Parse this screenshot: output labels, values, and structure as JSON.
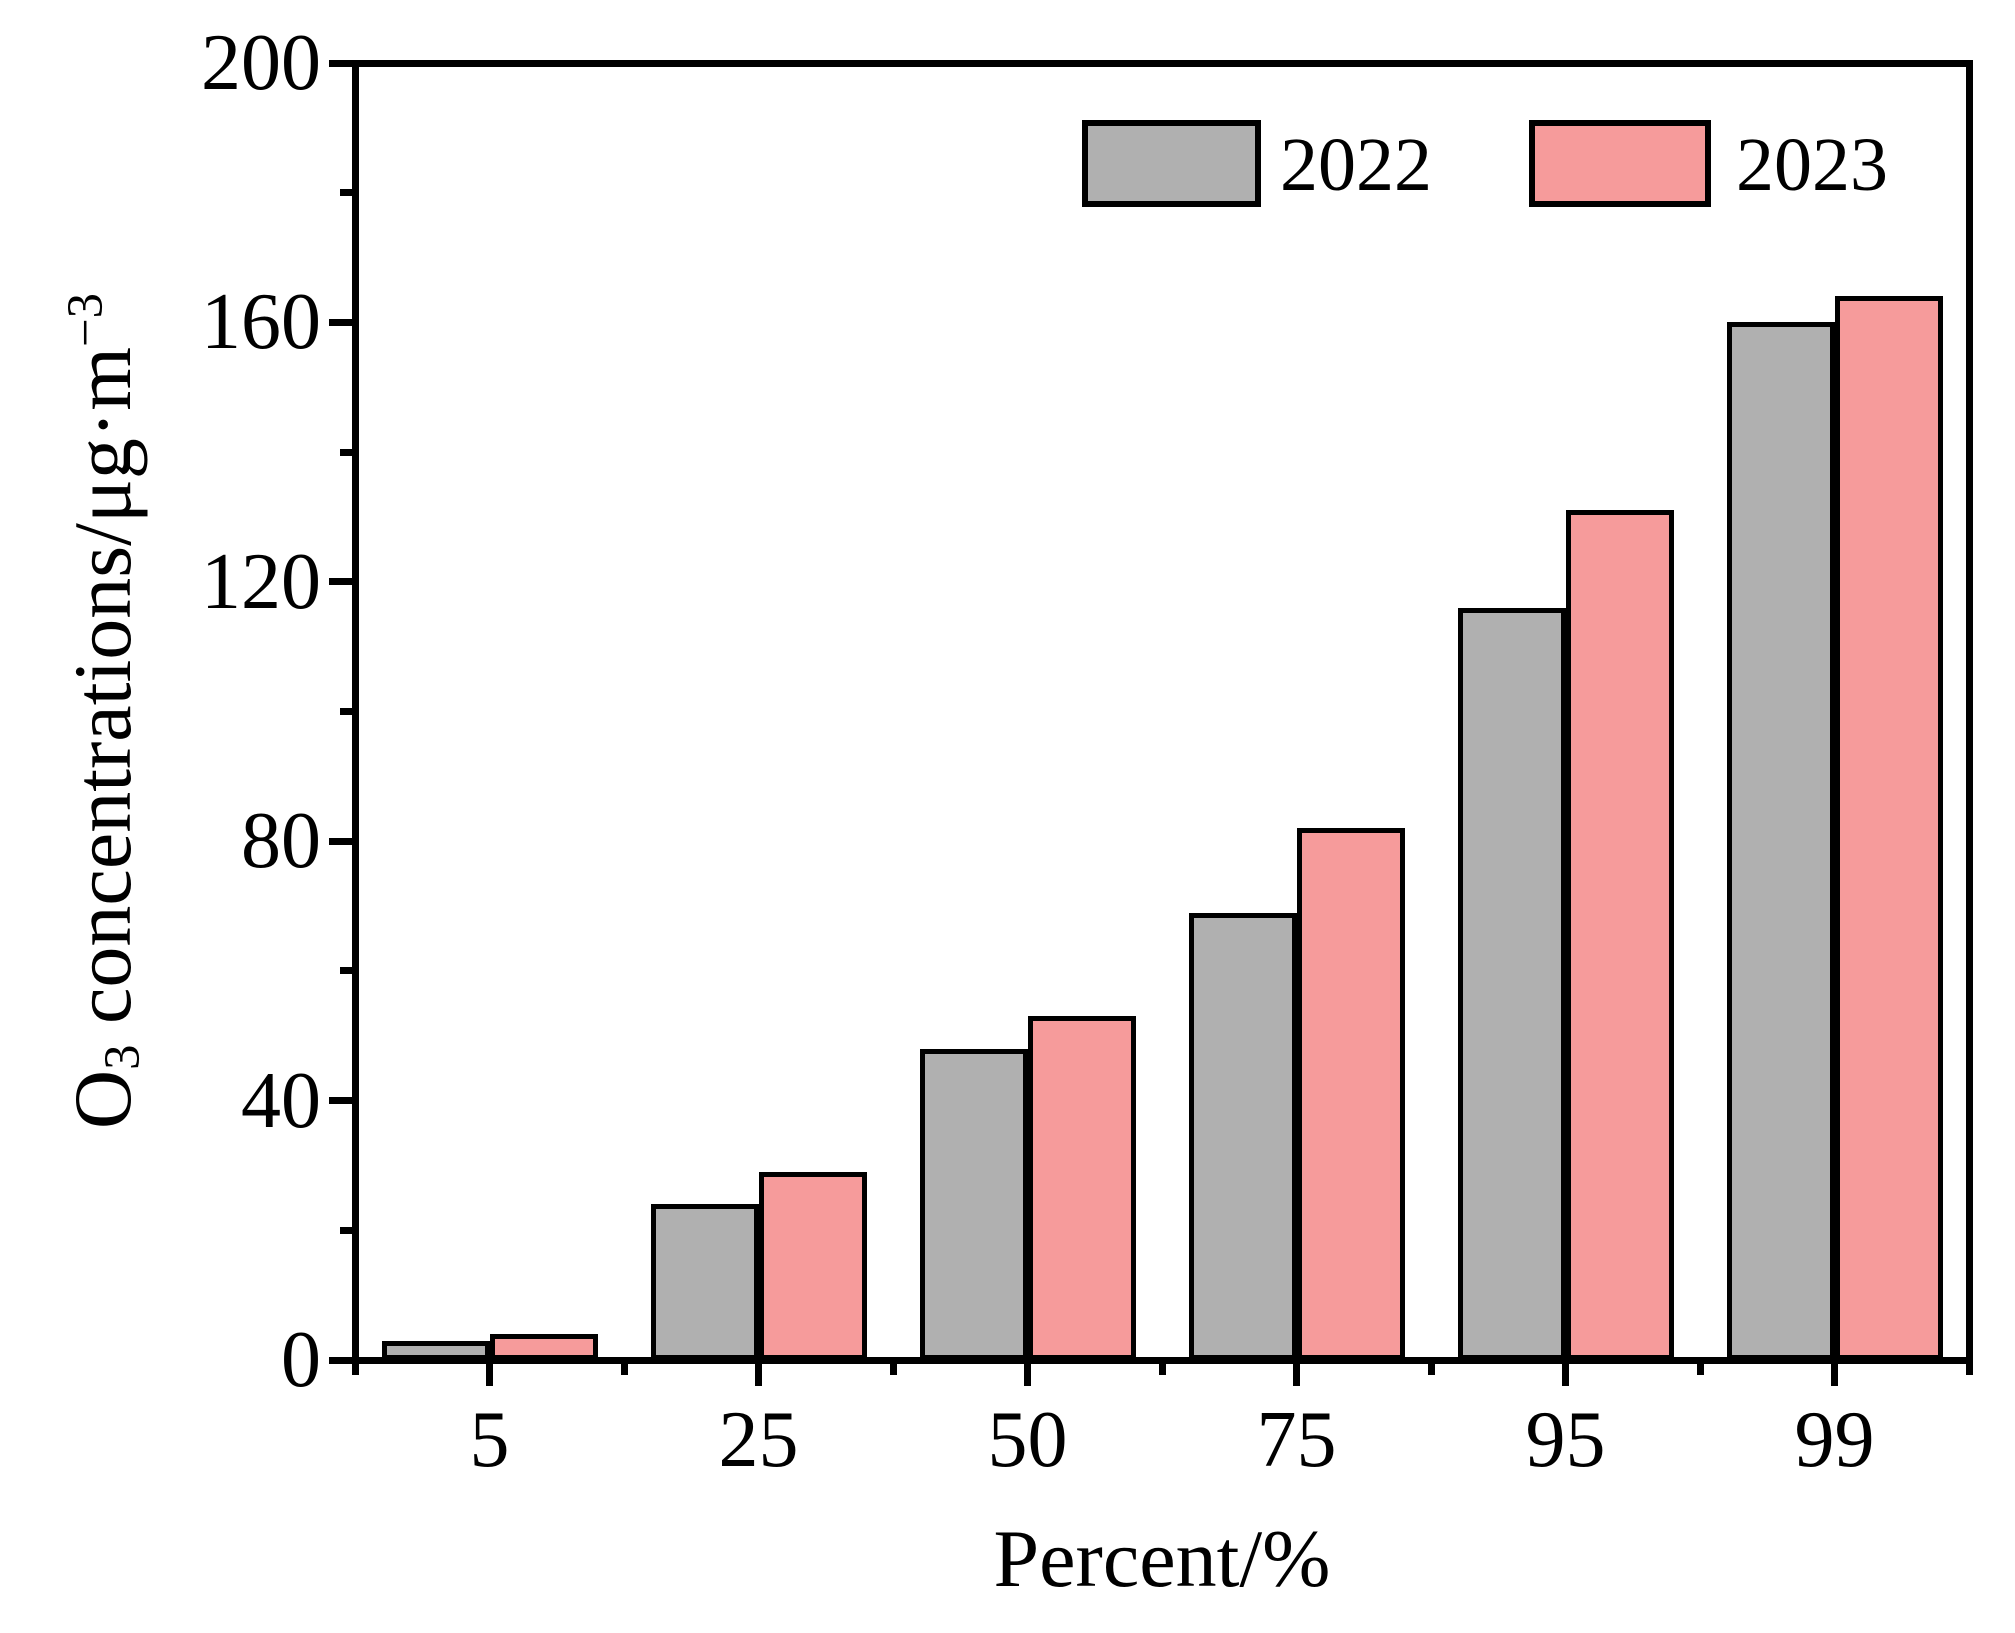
{
  "chart_data": {
    "type": "bar",
    "title": "",
    "categories": [
      "5",
      "25",
      "50",
      "75",
      "95",
      "99"
    ],
    "series": [
      {
        "name": "2022",
        "color": "#B0B0B0",
        "values": [
          3,
          24,
          48,
          69,
          116,
          160
        ]
      },
      {
        "name": "2023",
        "color": "#F69B9B",
        "values": [
          4,
          29,
          53,
          82,
          131,
          164
        ]
      }
    ],
    "xlabel": "Percent/%",
    "ylabel": "O3 concentrations/μg·m−3",
    "ylabel_parts": {
      "pre": "O",
      "sub": "3",
      "mid": " concentrations/μg·m",
      "sup": "−3"
    },
    "ylim": [
      0,
      200
    ],
    "y_major_ticks": [
      0,
      40,
      80,
      120,
      160,
      200
    ],
    "y_minor_ticks": [
      20,
      60,
      100,
      140,
      180
    ],
    "bar_edge_color": "#000000",
    "axis_color": "#000000",
    "grid": false,
    "legend_position": "top-right-inside"
  },
  "legend": {
    "items": [
      {
        "label": "2022",
        "color": "#B0B0B0"
      },
      {
        "label": "2023",
        "color": "#F69B9B"
      }
    ]
  }
}
